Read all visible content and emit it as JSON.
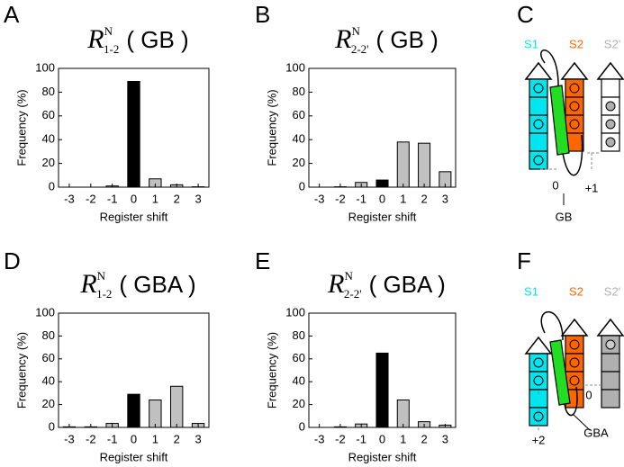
{
  "panels": [
    "A",
    "B",
    "C",
    "D",
    "E",
    "F"
  ],
  "chart_data": [
    {
      "type": "bar",
      "title": {
        "symbol": "R",
        "superscript": "N",
        "subscript": "1-2",
        "text": "( GB )"
      },
      "categories": [
        "-3",
        "-2",
        "-1",
        "0",
        "1",
        "2",
        "3"
      ],
      "values": [
        0,
        0,
        1,
        89,
        7,
        2,
        0.3
      ],
      "colors": [
        "#c0c0c0",
        "#c0c0c0",
        "#c0c0c0",
        "#000000",
        "#c0c0c0",
        "#c0c0c0",
        "#c0c0c0"
      ],
      "x_label": "Register shift",
      "y_label": "Frequency (%)",
      "ylim": [
        0,
        100
      ],
      "yticks": [
        0,
        20,
        40,
        60,
        80,
        100
      ]
    },
    {
      "type": "bar",
      "title": {
        "symbol": "R",
        "superscript": "N",
        "subscript": "2-2'",
        "text": "( GB )"
      },
      "categories": [
        "-3",
        "-2",
        "-1",
        "0",
        "1",
        "2",
        "3"
      ],
      "values": [
        0,
        0.3,
        4,
        6,
        38,
        37,
        13
      ],
      "colors": [
        "#c0c0c0",
        "#c0c0c0",
        "#c0c0c0",
        "#000000",
        "#c0c0c0",
        "#c0c0c0",
        "#c0c0c0"
      ],
      "x_label": "Register shift",
      "y_label": "Frequency (%)",
      "ylim": [
        0,
        100
      ],
      "yticks": [
        0,
        20,
        40,
        60,
        80,
        100
      ]
    },
    {
      "type": "bar",
      "title": {
        "symbol": "R",
        "superscript": "N",
        "subscript": "1-2",
        "text": "( GBA )"
      },
      "categories": [
        "-3",
        "-2",
        "-1",
        "0",
        "1",
        "2",
        "3"
      ],
      "values": [
        0.5,
        0.5,
        3.5,
        29,
        24,
        36,
        3.5
      ],
      "colors": [
        "#c0c0c0",
        "#c0c0c0",
        "#c0c0c0",
        "#000000",
        "#c0c0c0",
        "#c0c0c0",
        "#c0c0c0"
      ],
      "x_label": "Register shift",
      "y_label": "Frequency (%)",
      "ylim": [
        0,
        100
      ],
      "yticks": [
        0,
        20,
        40,
        60,
        80,
        100
      ]
    },
    {
      "type": "bar",
      "title": {
        "symbol": "R",
        "superscript": "N",
        "subscript": "2-2'",
        "text": "( GBA )"
      },
      "categories": [
        "-3",
        "-2",
        "-1",
        "0",
        "1",
        "2",
        "3"
      ],
      "values": [
        0,
        0.5,
        3,
        65,
        24,
        5,
        2
      ],
      "colors": [
        "#c0c0c0",
        "#c0c0c0",
        "#c0c0c0",
        "#000000",
        "#c0c0c0",
        "#c0c0c0",
        "#c0c0c0"
      ],
      "x_label": "Register shift",
      "y_label": "Frequency (%)",
      "ylim": [
        0,
        100
      ],
      "yticks": [
        0,
        20,
        40,
        60,
        80,
        100
      ]
    }
  ],
  "diagrams": [
    {
      "strands": [
        "S1",
        "S2",
        "S2'"
      ],
      "left_shift": "0",
      "right_shift": "+1",
      "rod": "GB"
    },
    {
      "strands": [
        "S1",
        "S2",
        "S2'"
      ],
      "left_shift": "+2",
      "right_shift": "0",
      "rod": "GBA"
    }
  ]
}
